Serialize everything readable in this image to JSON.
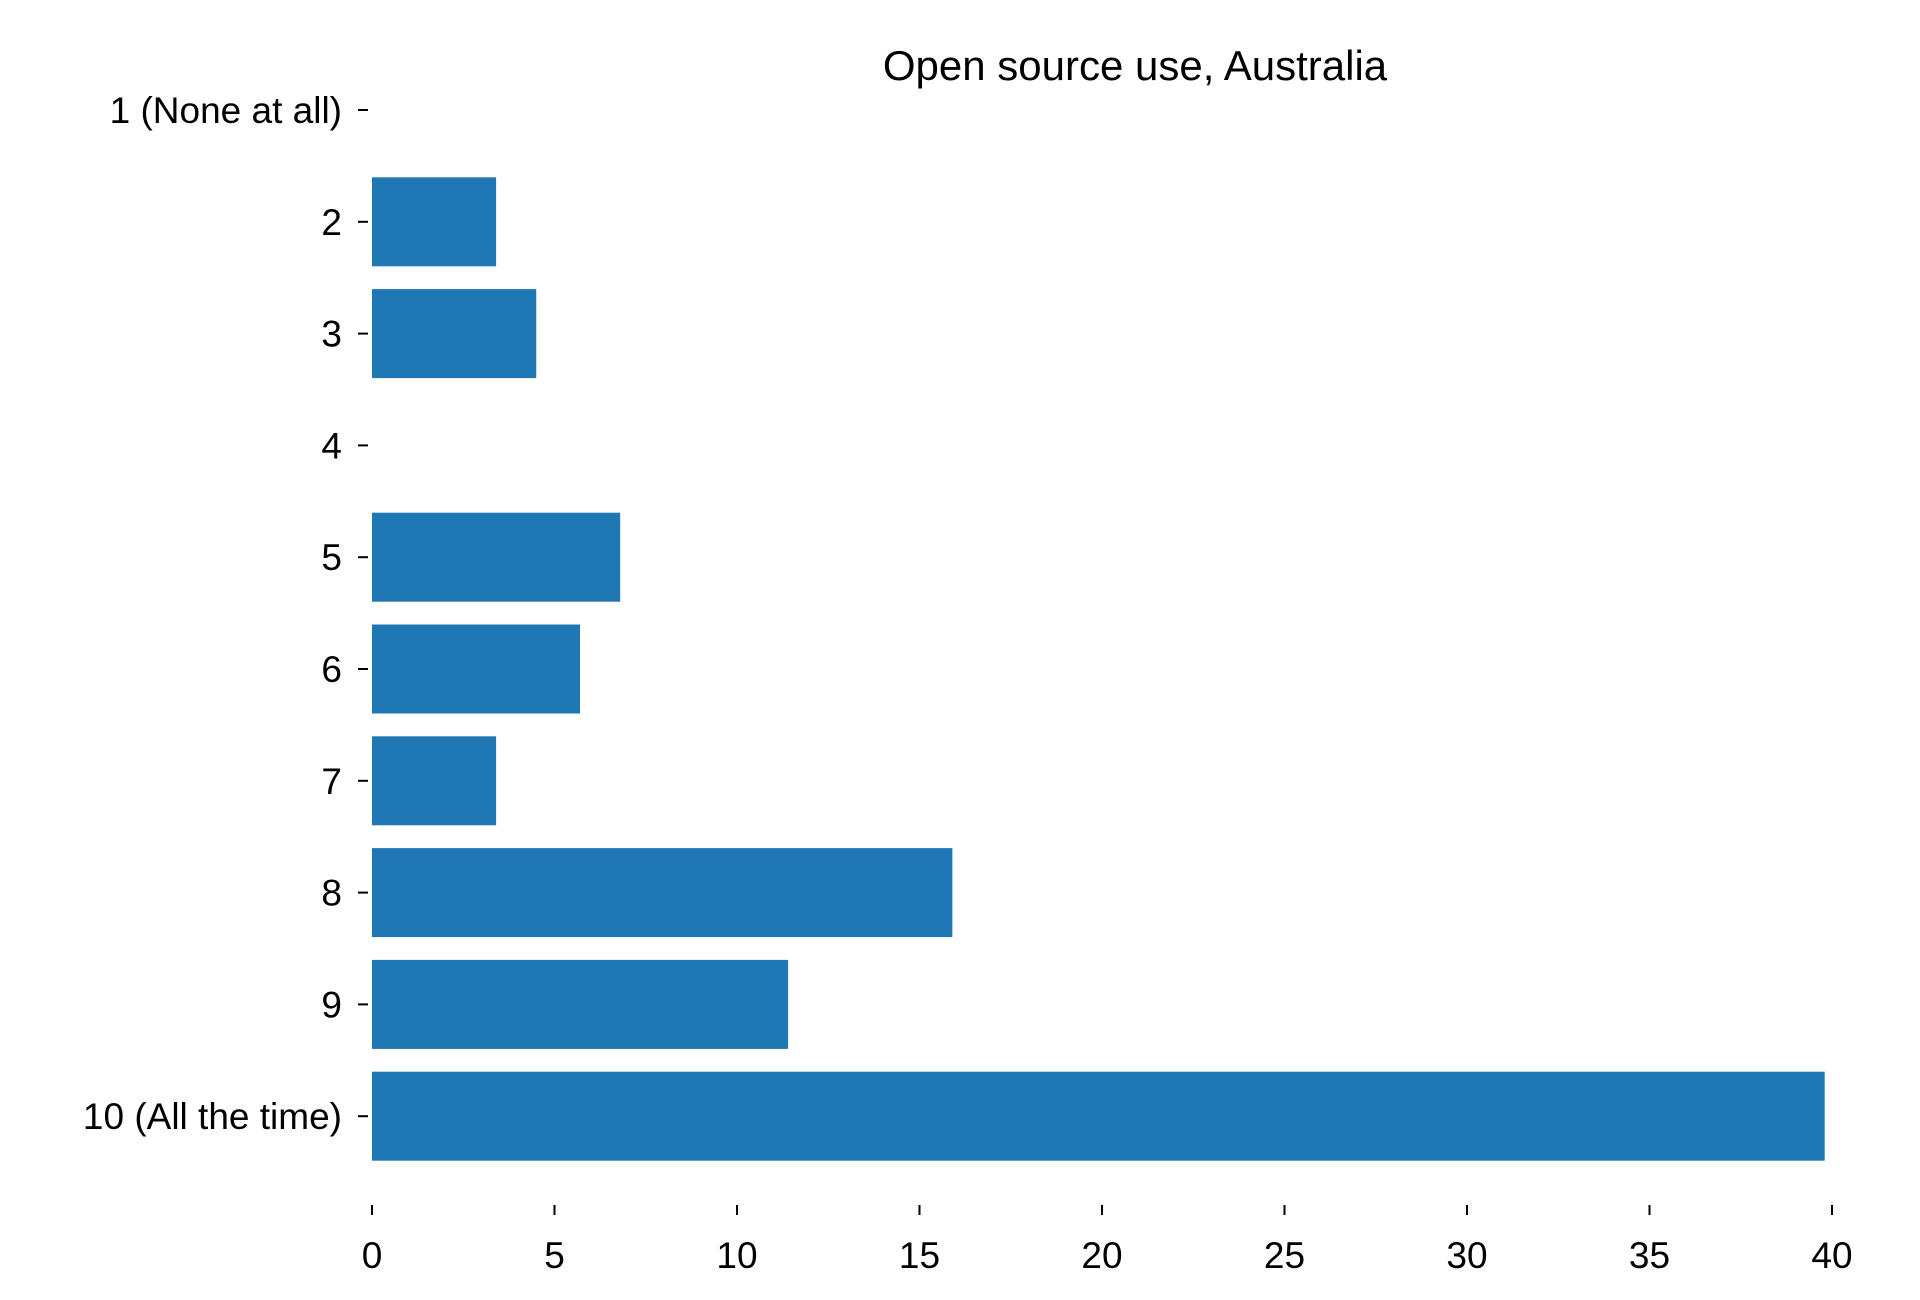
{
  "chart_data": {
    "type": "bar",
    "orientation": "horizontal",
    "title": "Open source use, Australia",
    "xlabel": "",
    "ylabel": "",
    "categories": [
      "1 (None at all)",
      "2",
      "3",
      "4",
      "5",
      "6",
      "7",
      "8",
      "9",
      "10 (All the time)"
    ],
    "values": [
      0,
      3.4,
      4.5,
      0,
      6.8,
      5.7,
      3.4,
      15.9,
      11.4,
      39.8
    ],
    "xlim": [
      0,
      40
    ],
    "xticks": [
      0,
      5,
      10,
      15,
      20,
      25,
      30,
      35,
      40
    ],
    "grid": false,
    "legend": "none",
    "bar_color": "#1f77b4"
  }
}
